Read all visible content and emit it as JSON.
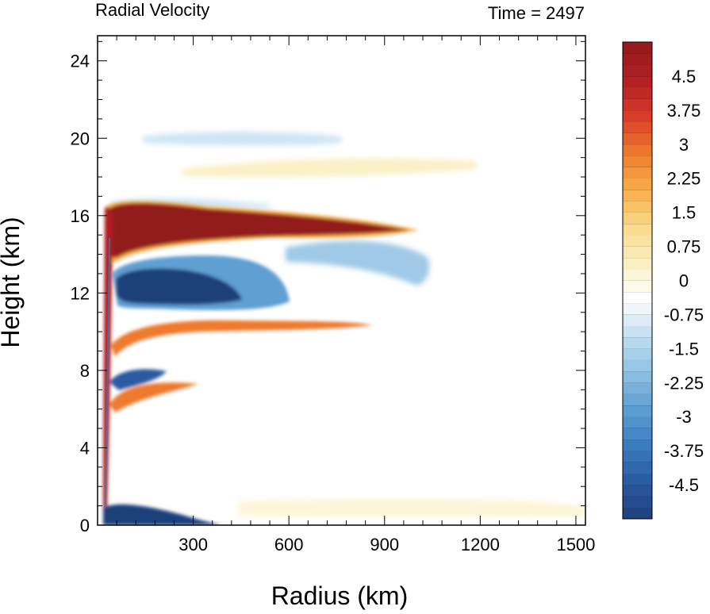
{
  "chart_data": {
    "type": "heatmap",
    "title": "Radial Velocity",
    "subtitle": "Time = 2497",
    "xlabel": "Radius (km)",
    "ylabel": "Height (km)",
    "xlim": [
      0,
      1530
    ],
    "ylim": [
      0,
      25.3
    ],
    "xticks": [
      300,
      600,
      900,
      1200,
      1500
    ],
    "yticks": [
      0,
      4,
      8,
      12,
      16,
      20,
      24
    ],
    "colorbar": {
      "range": [
        -5.25,
        5.25
      ],
      "step": 0.25,
      "labels": [
        "4.5",
        "3.75",
        "3",
        "2.25",
        "1.5",
        "0.75",
        "0",
        "-0.75",
        "-1.5",
        "-2.25",
        "-3",
        "-3.75",
        "-4.5"
      ],
      "colors": [
        "#1f3f7a",
        "#2a5aa0",
        "#3b7cbf",
        "#5e9fd2",
        "#8fc0e3",
        "#c2dff0",
        "#ffffff",
        "#fbeec0",
        "#fad989",
        "#f6ad4b",
        "#ee7a2e",
        "#d83a28",
        "#b01f24",
        "#921a1c"
      ]
    },
    "features": [
      {
        "name": "upper outflow",
        "sign": "positive",
        "r_km": [
          40,
          990
        ],
        "z_km": [
          13.4,
          16.7
        ],
        "peak": 5.5
      },
      {
        "name": "return inflow",
        "sign": "negative",
        "r_km": [
          50,
          560
        ],
        "z_km": [
          10.8,
          13.5
        ],
        "peak": -5.5
      },
      {
        "name": "outflow layer",
        "sign": "positive",
        "r_km": [
          60,
          620
        ],
        "z_km": [
          9.5,
          10.7
        ],
        "peak": 3.5
      },
      {
        "name": "inflow layer",
        "sign": "negative",
        "r_km": [
          50,
          200
        ],
        "z_km": [
          6.8,
          7.9
        ],
        "peak": -5
      },
      {
        "name": "outflow layer",
        "sign": "positive",
        "r_km": [
          60,
          320
        ],
        "z_km": [
          5.7,
          6.8
        ],
        "peak": 3.5
      },
      {
        "name": "boundary-layer inflow",
        "sign": "negative",
        "r_km": [
          25,
          300
        ],
        "z_km": [
          0,
          1.0
        ],
        "peak": -5.5
      },
      {
        "name": "secondary inflow",
        "sign": "negative",
        "r_km": [
          570,
          1030
        ],
        "z_km": [
          13.0,
          14.6
        ],
        "peak": -2
      },
      {
        "name": "upper outflow (faint)",
        "sign": "positive",
        "r_km": [
          260,
          1180
        ],
        "z_km": [
          17.9,
          19.0
        ],
        "peak": 1.2
      },
      {
        "name": "upper inflow (faint)",
        "sign": "negative",
        "r_km": [
          150,
          760
        ],
        "z_km": [
          19.4,
          20.3
        ],
        "peak": -0.8
      }
    ]
  }
}
